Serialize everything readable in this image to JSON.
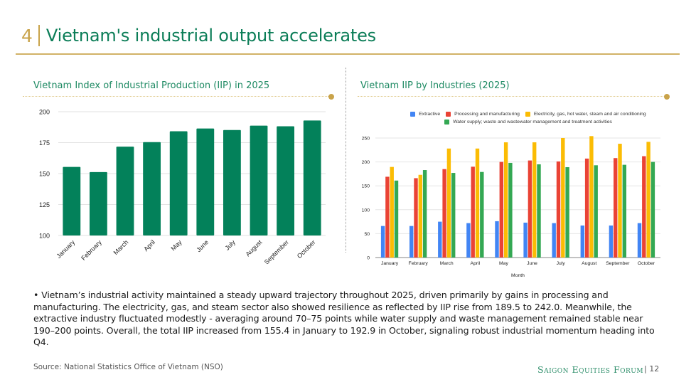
{
  "slide": {
    "section_number": "4",
    "title": "Vietnam's industrial output accelerates",
    "body": "• Vietnam’s industrial activity maintained a steady upward trajectory throughout 2025, driven primarily by gains in processing and manufacturing. The electricity, gas, and steam sector also showed resilience as reflected by IIP rise from 189.5 to 242.0. Meanwhile, the extractive industry fluctuated modestly - averaging around 70–75 points while water supply and waste management remained stable near 190–200 points. Overall, the total IIP increased from 155.4 in January to 192.9 in October, signaling robust industrial momentum heading into Q4.",
    "source": "Source: National Statistics Office of Vietnam (NSO)",
    "brand": "Saigon Equities Forum",
    "page_number": "12",
    "colors": {
      "accent_gold": "#c9a34a",
      "brand_green": "#0b7d57",
      "bar_green": "#03815a"
    }
  },
  "chart_data": [
    {
      "type": "bar",
      "title": "Vietnam Index of Industrial Production (IIP) in 2025",
      "categories": [
        "January",
        "February",
        "March",
        "April",
        "May",
        "June",
        "July",
        "August",
        "September",
        "October"
      ],
      "values": [
        155.4,
        151.2,
        171.8,
        175.4,
        184.2,
        186.4,
        185.2,
        188.7,
        188.2,
        192.9
      ],
      "xlabel": "",
      "ylabel": "",
      "ylim": [
        100,
        200
      ],
      "yticks": [
        100,
        125,
        150,
        175,
        200
      ],
      "grid": true,
      "legend": "none",
      "color": "#03815a"
    },
    {
      "type": "bar",
      "title": "Vietnam IIP by Industries (2025)",
      "categories": [
        "January",
        "February",
        "March",
        "April",
        "May",
        "June",
        "July",
        "August",
        "September",
        "October"
      ],
      "series": [
        {
          "name": "Extractive",
          "color": "#4285f4",
          "values": [
            66,
            66,
            75,
            72,
            76,
            73,
            72,
            67,
            67,
            72
          ]
        },
        {
          "name": "Processing and manufacturing",
          "color": "#ea4335",
          "values": [
            169,
            166,
            185,
            190,
            200,
            203,
            201,
            207,
            208,
            212
          ]
        },
        {
          "name": "Electricity, gas, hot water, steam and air conditioning",
          "color": "#fbbc04",
          "values": [
            189.5,
            173,
            228,
            228,
            241,
            241,
            250,
            254,
            238,
            242
          ]
        },
        {
          "name": "Water supply; waste and wastewater management and treatment activities",
          "color": "#34a853",
          "values": [
            161,
            183,
            177,
            179,
            198,
            195,
            189,
            193,
            194,
            200
          ]
        }
      ],
      "xlabel": "Month",
      "ylabel": "",
      "ylim": [
        0,
        250
      ],
      "yticks": [
        0,
        50,
        100,
        150,
        200,
        250
      ],
      "grid": true,
      "legend": "top"
    }
  ]
}
